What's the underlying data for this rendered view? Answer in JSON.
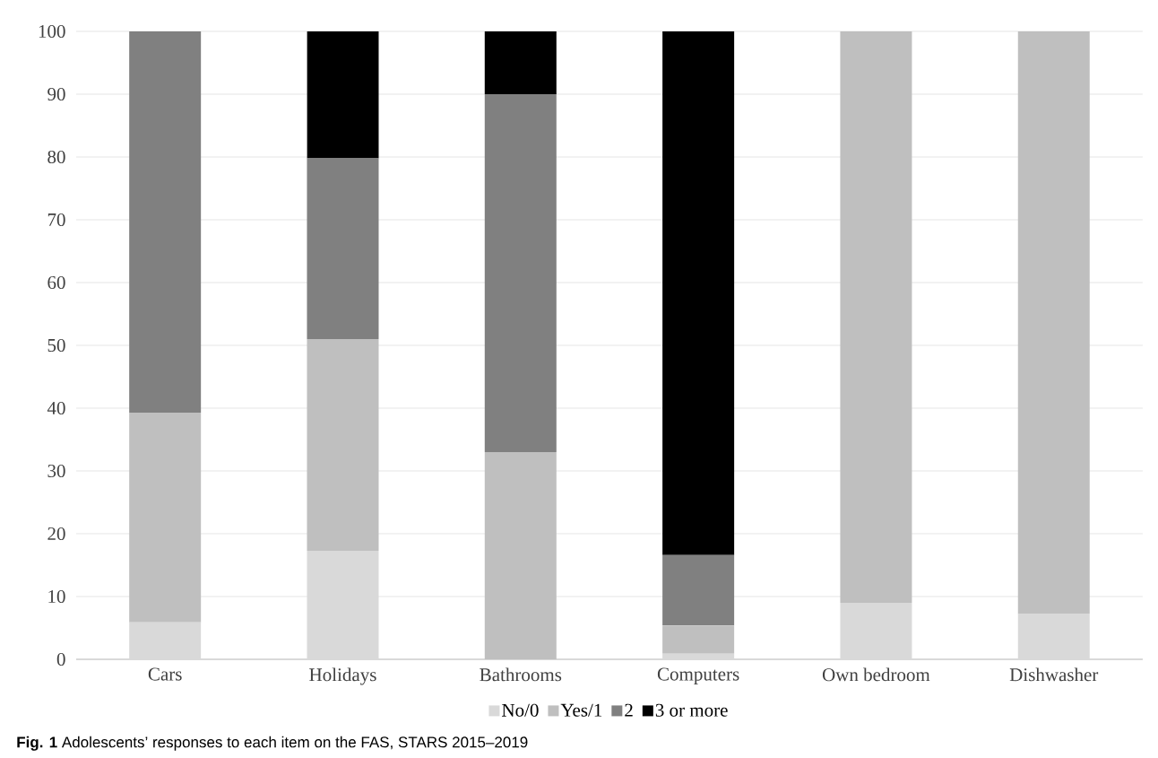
{
  "chart_data": {
    "type": "bar",
    "stacked": true,
    "categories": [
      "Cars",
      "Holidays",
      "Bathrooms",
      "Computers",
      "Own bedroom",
      "Dishwasher"
    ],
    "series": [
      {
        "name": "No/0",
        "color": "#d9d9d9",
        "values": [
          5.9,
          17.3,
          0,
          0.9,
          9,
          7.3
        ]
      },
      {
        "name": "Yes/1",
        "color": "#bfbfbf",
        "values": [
          33.4,
          33.7,
          33,
          4.5,
          91,
          92.7
        ]
      },
      {
        "name": "2",
        "color": "#808080",
        "values": [
          60.7,
          28.8,
          57,
          11.2,
          0,
          0
        ]
      },
      {
        "name": "3 or more",
        "color": "#000000",
        "values": [
          0,
          20.2,
          10,
          83.4,
          0,
          0
        ]
      }
    ],
    "ylim": [
      0,
      100
    ],
    "yticks": [
      0,
      10,
      20,
      30,
      40,
      50,
      60,
      70,
      80,
      90,
      100
    ],
    "grid": "y",
    "legend": "bottom",
    "annotations": [
      "**Fig. 1** Adolescents’ responses to each item on the FAS, STARS 2015–2019"
    ]
  }
}
